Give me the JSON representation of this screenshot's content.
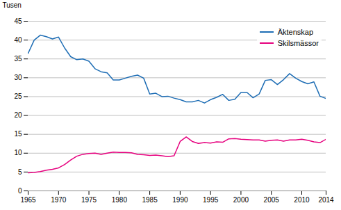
{
  "chart_data": {
    "type": "line",
    "ylabel": "Tusen",
    "x": [
      1965,
      1966,
      1967,
      1968,
      1969,
      1970,
      1971,
      1972,
      1973,
      1974,
      1975,
      1976,
      1977,
      1978,
      1979,
      1980,
      1981,
      1982,
      1983,
      1984,
      1985,
      1986,
      1987,
      1988,
      1989,
      1990,
      1991,
      1992,
      1993,
      1994,
      1995,
      1996,
      1997,
      1998,
      1999,
      2000,
      2001,
      2002,
      2003,
      2004,
      2005,
      2006,
      2007,
      2008,
      2009,
      2010,
      2011,
      2012,
      2013,
      2014
    ],
    "series": [
      {
        "name": "Äktenskap",
        "color": "#1f6eb5",
        "values": [
          36.5,
          40.0,
          41.3,
          40.9,
          40.3,
          40.8,
          37.9,
          35.6,
          34.8,
          35.0,
          34.4,
          32.4,
          31.6,
          31.3,
          29.4,
          29.4,
          29.9,
          30.4,
          30.7,
          29.9,
          25.7,
          25.9,
          25.0,
          25.1,
          24.6,
          24.2,
          23.6,
          23.6,
          24.0,
          23.3,
          24.2,
          24.8,
          25.6,
          24.0,
          24.3,
          26.1,
          26.1,
          24.7,
          25.7,
          29.3,
          29.5,
          28.2,
          29.5,
          31.1,
          29.9,
          29.0,
          28.4,
          28.9,
          25.1,
          24.5
        ]
      },
      {
        "name": "Skilsmässor",
        "color": "#e6007e",
        "values": [
          4.8,
          4.9,
          5.1,
          5.5,
          5.7,
          6.1,
          7.0,
          8.2,
          9.2,
          9.7,
          9.9,
          10.0,
          9.7,
          10.0,
          10.3,
          10.2,
          10.2,
          10.1,
          9.7,
          9.6,
          9.4,
          9.5,
          9.3,
          9.1,
          9.3,
          13.1,
          14.3,
          13.1,
          12.6,
          12.8,
          12.7,
          13.0,
          12.9,
          13.8,
          13.9,
          13.7,
          13.6,
          13.5,
          13.5,
          13.2,
          13.4,
          13.5,
          13.2,
          13.5,
          13.5,
          13.7,
          13.4,
          13.0,
          12.8,
          13.7
        ]
      }
    ],
    "xlim": [
      1965,
      2014
    ],
    "ylim": [
      0,
      45
    ],
    "xticks": [
      1965,
      1970,
      1975,
      1980,
      1985,
      1990,
      1995,
      2000,
      2005,
      2010,
      2014
    ],
    "yticks": [
      0,
      5,
      10,
      15,
      20,
      25,
      30,
      35,
      40,
      45
    ],
    "grid": "y",
    "legend": "upper right"
  }
}
